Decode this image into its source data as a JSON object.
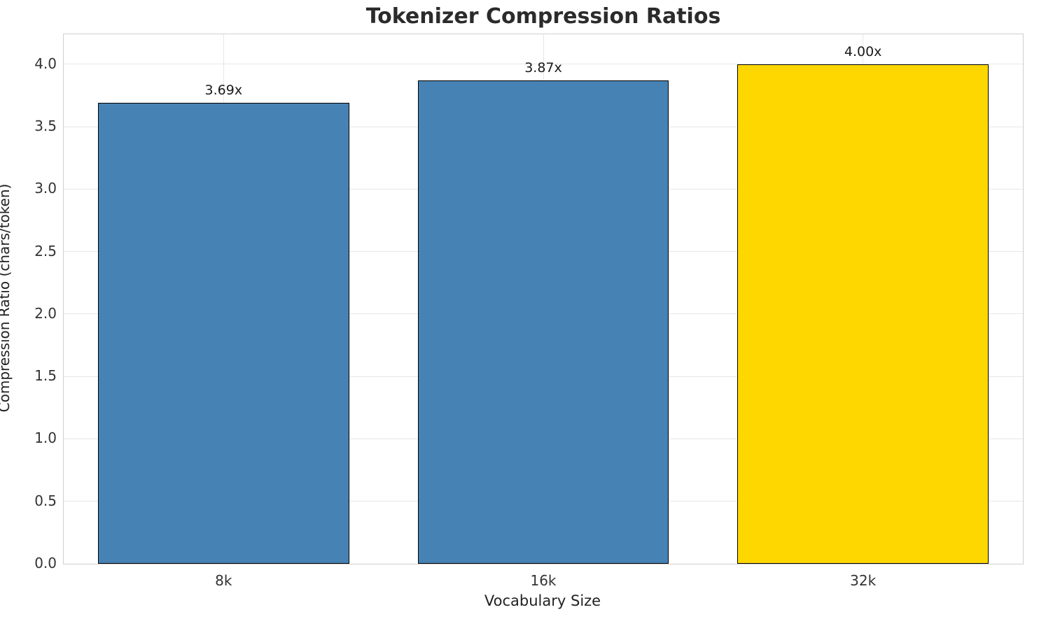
{
  "chart_data": {
    "type": "bar",
    "title": "Tokenizer Compression Ratios",
    "xlabel": "Vocabulary Size",
    "ylabel": "Compression Ratio (chars/token)",
    "categories": [
      "8k",
      "16k",
      "32k"
    ],
    "values": [
      3.69,
      3.87,
      4.0
    ],
    "bar_labels": [
      "3.69x",
      "3.87x",
      "4.00x"
    ],
    "bar_colors": [
      "#4682B4",
      "#4682B4",
      "#FFD700"
    ],
    "bar_edge_color": "#000000",
    "ylim": [
      0,
      4.24
    ],
    "yticks": [
      0.0,
      0.5,
      1.0,
      1.5,
      2.0,
      2.5,
      3.0,
      3.5,
      4.0
    ],
    "ytick_labels": [
      "0.0",
      "0.5",
      "1.0",
      "1.5",
      "2.0",
      "2.5",
      "3.0",
      "3.5",
      "4.0"
    ],
    "grid": true,
    "legend": "none"
  }
}
